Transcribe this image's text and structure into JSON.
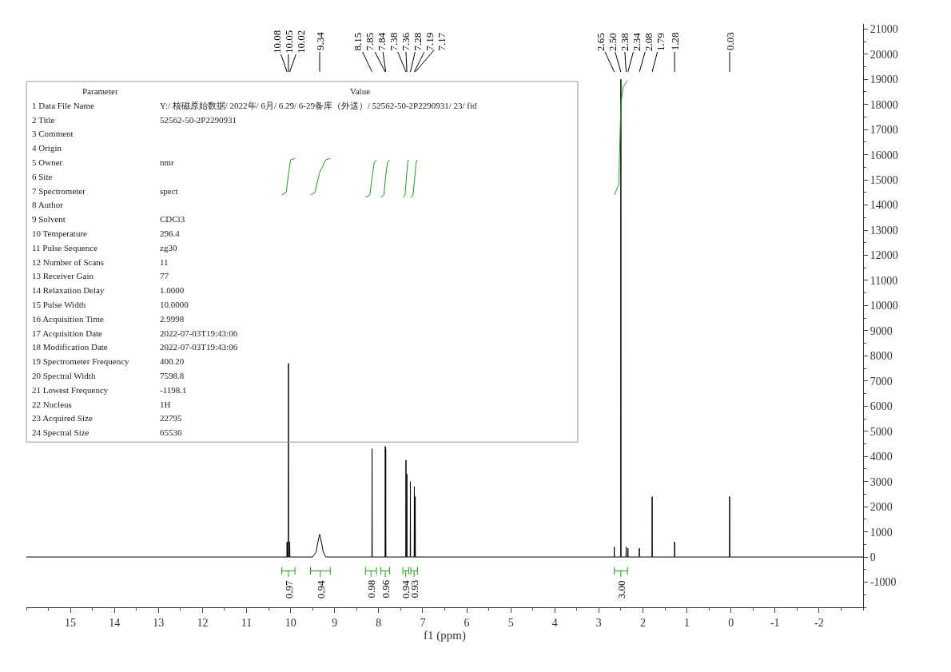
{
  "chart_data": {
    "type": "line",
    "xlabel": "f1 (ppm)",
    "xlim": [
      16,
      -3
    ],
    "xticks": [
      15,
      14,
      13,
      12,
      11,
      10,
      9,
      8,
      7,
      6,
      5,
      4,
      3,
      2,
      1,
      0,
      -1,
      -2
    ],
    "ylim": [
      -2000,
      21200
    ],
    "yticks": [
      -1000,
      0,
      1000,
      2000,
      3000,
      4000,
      5000,
      6000,
      7000,
      8000,
      9000,
      10000,
      11000,
      12000,
      13000,
      14000,
      15000,
      16000,
      17000,
      18000,
      19000,
      20000,
      21000
    ],
    "series": [
      {
        "color": "#000000",
        "x": [
          16,
          10.2,
          10.084,
          10.08,
          10.076,
          10.054,
          10.05,
          10.046,
          10.024,
          10.02,
          10.016,
          9.5,
          9.42,
          9.38,
          9.34,
          9.3,
          9.26,
          9.2,
          8.154,
          8.15,
          8.146,
          7.854,
          7.85,
          7.846,
          7.844,
          7.84,
          7.836,
          7.384,
          7.38,
          7.376,
          7.364,
          7.36,
          7.356,
          7.284,
          7.28,
          7.276,
          7.194,
          7.19,
          7.186,
          7.174,
          7.17,
          7.166,
          2.654,
          2.65,
          2.646,
          2.504,
          2.5,
          2.496,
          2.384,
          2.38,
          2.376,
          2.344,
          2.34,
          2.336,
          2.084,
          2.08,
          2.076,
          1.794,
          1.79,
          1.786,
          1.284,
          1.28,
          1.276,
          0.034,
          0.03,
          0.026,
          -3
        ],
        "values": [
          0,
          0,
          0,
          600,
          0,
          0,
          7700,
          0,
          0,
          600,
          0,
          0,
          200,
          600,
          900,
          600,
          200,
          0,
          0,
          4300,
          0,
          0,
          4400,
          0,
          0,
          4300,
          0,
          0,
          3850,
          0,
          0,
          3300,
          0,
          0,
          3000,
          0,
          0,
          2800,
          0,
          0,
          2400,
          0,
          0,
          400,
          0,
          0,
          19000,
          0,
          0,
          400,
          0,
          0,
          350,
          0,
          0,
          350,
          0,
          0,
          2400,
          0,
          0,
          600,
          0,
          0,
          2400,
          0,
          0
        ]
      },
      {
        "color": "#1f9a1f",
        "x": [
          10.2,
          10.1,
          10.05,
          10.0,
          9.9,
          null,
          9.55,
          9.45,
          9.34,
          9.2,
          9.1,
          null,
          8.3,
          8.2,
          8.15,
          8.1,
          8.05,
          null,
          7.95,
          7.88,
          7.845,
          7.8,
          7.75,
          null,
          7.45,
          7.4,
          7.37,
          7.34,
          7.32,
          null,
          7.27,
          7.22,
          7.18,
          7.15,
          7.12,
          null,
          2.65,
          2.55,
          2.5,
          2.45,
          2.35
        ],
        "values": [
          14400,
          14500,
          15200,
          15800,
          15850,
          null,
          14400,
          14500,
          15300,
          15800,
          15850,
          null,
          14300,
          14400,
          15100,
          15700,
          15800,
          null,
          14300,
          14400,
          15100,
          15700,
          15800,
          null,
          14300,
          14400,
          15100,
          15700,
          15800,
          null,
          14300,
          14400,
          15100,
          15700,
          15800,
          null,
          14400,
          14800,
          18000,
          18700,
          18950
        ]
      }
    ],
    "annotations": [
      "Parameter\tValue",
      "1 Data File Name\tY:/ 核磁原始数据/ 2022年/ 6月/ 6.29/ 6-29备库（外送）/ 52562-50-2P2290931/ 23/ fid",
      "2 Title\t52562-50-2P2290931",
      "3 Comment",
      "4 Origin",
      "5 Owner\tnmr",
      "6 Site",
      "7 Spectrometer\tspect",
      "8 Author",
      "9 Solvent\tCDCl3",
      "10 Temperature\t296.4",
      "11 Pulse Sequence\tzg30",
      "12 Number of Scans\t11",
      "13 Receiver Gain\t77",
      "14 Relaxation Delay\t1.0000",
      "15 Pulse Width\t10.0000",
      "16 Acquisition Time\t2.9998",
      "17 Acquisition Date\t2022-07-03T19:43:06",
      "18 Modification Date\t2022-07-03T19:43:06",
      "19 Spectrometer Frequency\t400.20",
      "20 Spectral Width\t7598.8",
      "21 Lowest Frequency\t-1198.1",
      "22 Nucleus\t1H",
      "23 Acquired Size\t22795",
      "24 Spectral Size\t65536",
      "10.08",
      "10.05",
      "10.02",
      "9.34",
      "8.15",
      "7.85",
      "7.84",
      "7.38",
      "7.36",
      "7.28",
      "7.19",
      "7.17",
      "2.65",
      "2.50",
      "2.38",
      "2.34",
      "2.08",
      "1.79",
      "1.28",
      "0.03",
      "0.97",
      "0.94",
      "0.98",
      "0.96",
      "0.94",
      "0.93",
      "3.00"
    ]
  }
}
